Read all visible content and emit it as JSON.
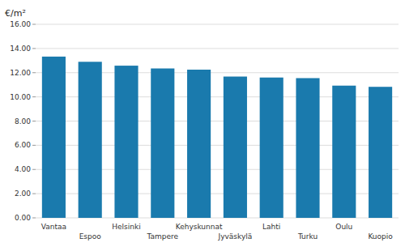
{
  "chart_data": {
    "type": "bar",
    "ylabel": "€/m²",
    "categories": [
      "Vantaa",
      "Espoo",
      "Helsinki",
      "Tampere",
      "Kehyskunnat",
      "Jyväskylä",
      "Lahti",
      "Turku",
      "Oulu",
      "Kuopio"
    ],
    "values": [
      13.33,
      12.9,
      12.58,
      12.35,
      12.25,
      11.68,
      11.6,
      11.55,
      10.93,
      10.83
    ],
    "color": "#1a7aad",
    "ylim": [
      0,
      16.0
    ],
    "yticks": [
      {
        "value": 0,
        "label": "0.00"
      },
      {
        "value": 2,
        "label": "2.00"
      },
      {
        "value": 4,
        "label": "4.00"
      },
      {
        "value": 6,
        "label": "6.00"
      },
      {
        "value": 8,
        "label": "8.00"
      },
      {
        "value": 10,
        "label": "10.00"
      },
      {
        "value": 12,
        "label": "12.00"
      },
      {
        "value": 14,
        "label": "14.00"
      },
      {
        "value": 16,
        "label": "16.00"
      }
    ],
    "grid": true
  }
}
